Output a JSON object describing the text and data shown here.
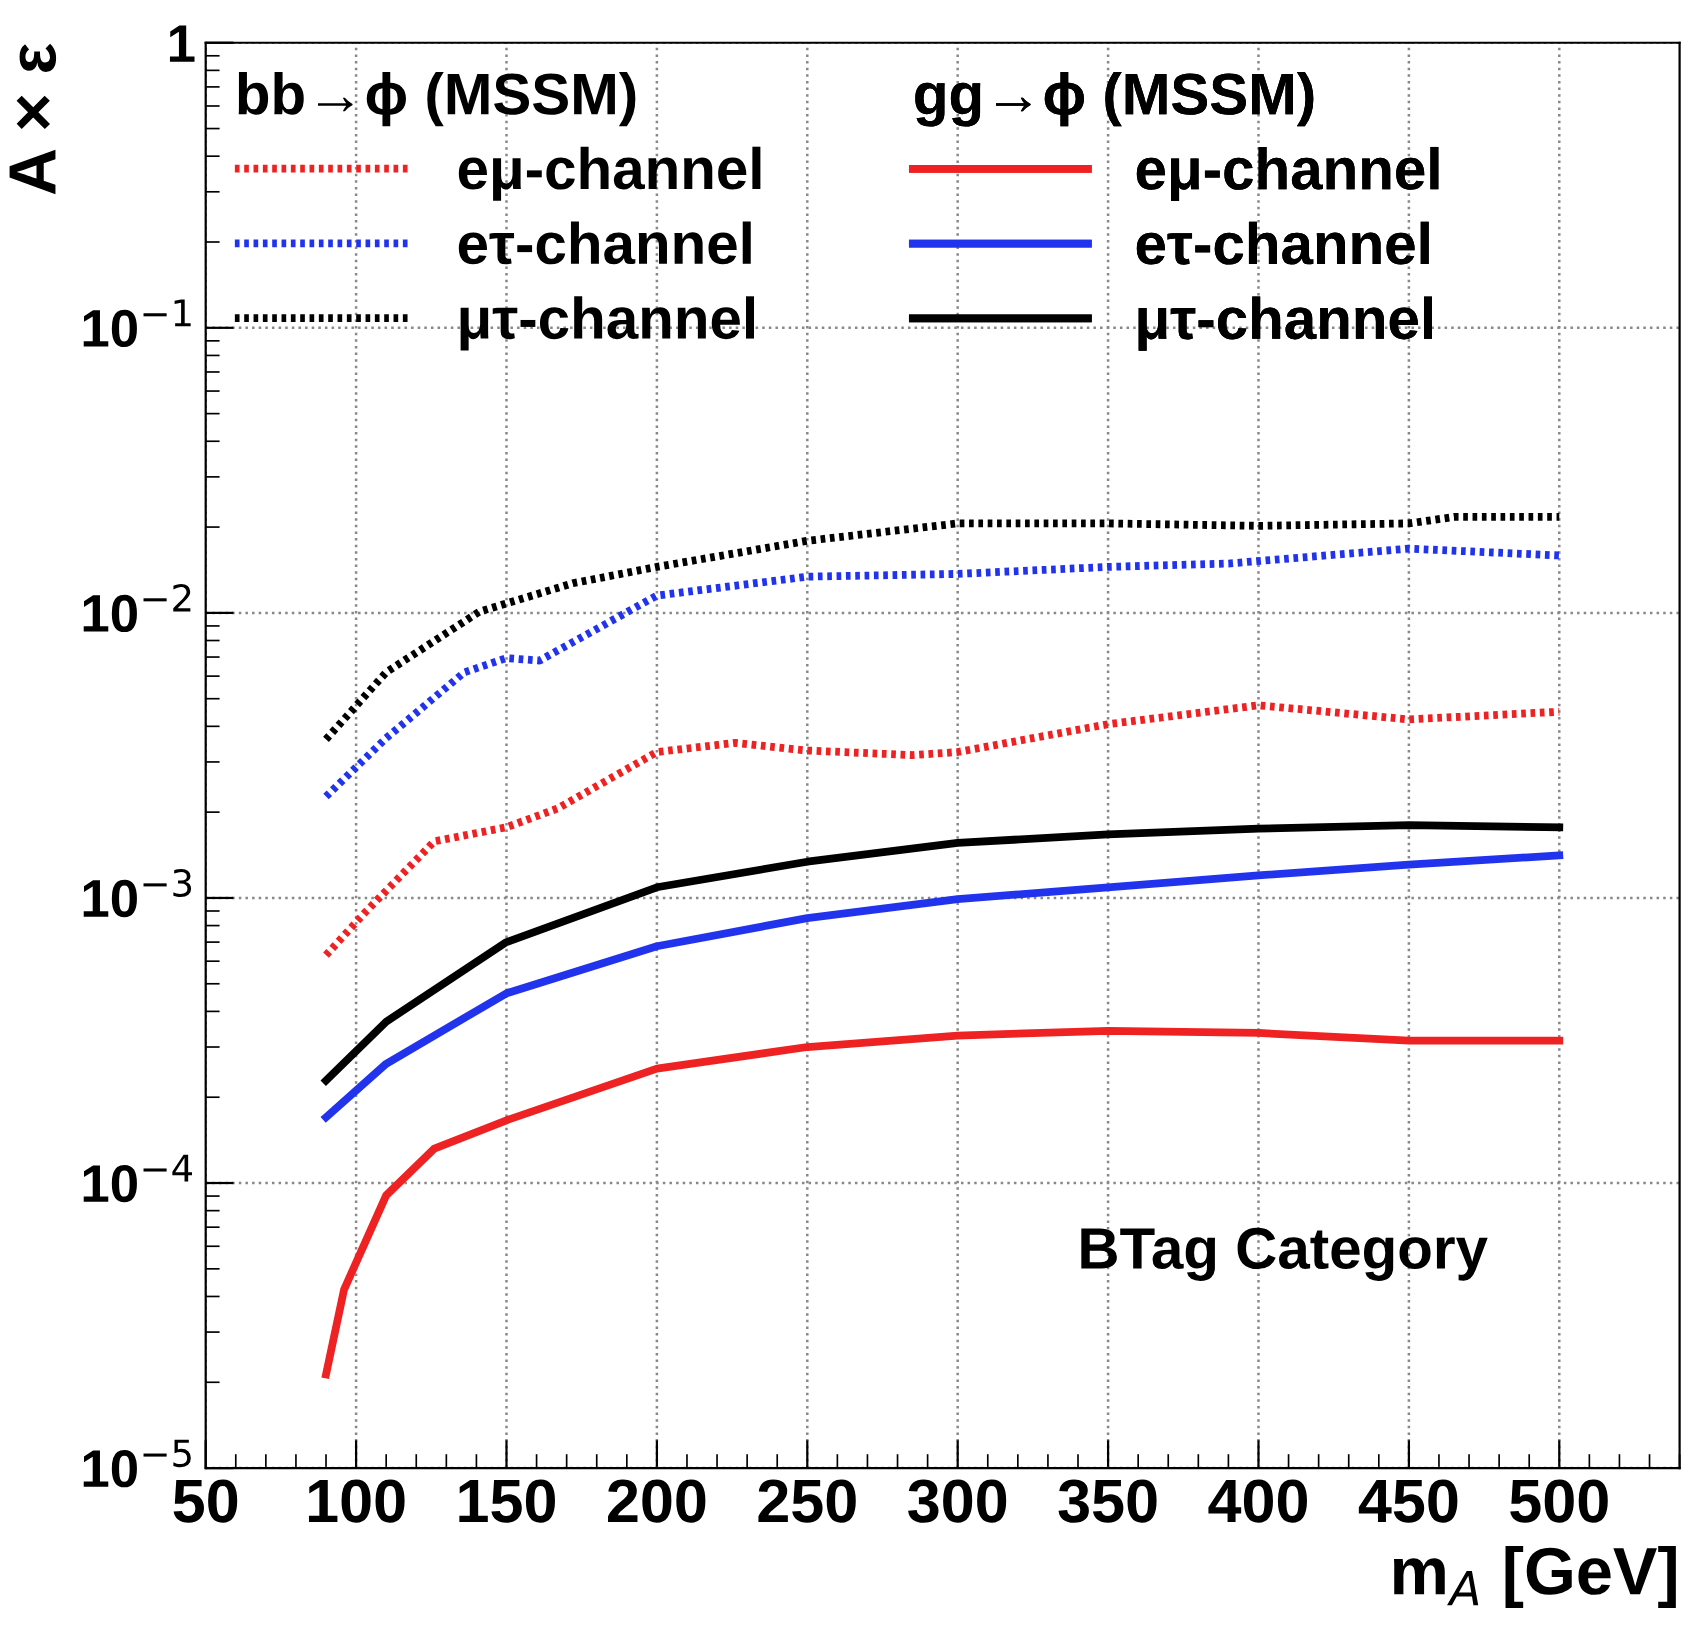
{
  "chart_data": {
    "type": "line",
    "xlabel": "m$_{A}$ [GeV]",
    "ylabel": "A × ε",
    "log": "y",
    "grid": true,
    "legend": "top left",
    "xlim": [
      50,
      540
    ],
    "xticks": [
      50,
      100,
      150,
      200,
      250,
      300,
      350,
      400,
      450,
      500
    ],
    "ylim": [
      1e-05,
      1
    ],
    "yticks": [
      {
        "value": 1e-05,
        "label": "10$^{−5}$"
      },
      {
        "value": 0.0001,
        "label": "10$^{−4}$"
      },
      {
        "value": 0.001,
        "label": "10$^{−3}$"
      },
      {
        "value": 0.01,
        "label": "10$^{−2}$"
      },
      {
        "value": 0.1,
        "label": "10$^{−1}$"
      },
      {
        "value": 1,
        "label": "1"
      }
    ],
    "annotations": [
      "bb→ϕ (MSSM)",
      "gg→ϕ (MSSM)",
      "BTag Category"
    ],
    "series": [
      {
        "name": "eμ-channel",
        "color": "#ee2222",
        "line_style": "dotted",
        "x": [
          90,
          103,
          126,
          150,
          167,
          200,
          226,
          250,
          285,
          300,
          350,
          400,
          450,
          500
        ],
        "values": [
          0.00063,
          0.00089,
          0.00158,
          0.00177,
          0.00206,
          0.00325,
          0.0035,
          0.00329,
          0.00317,
          0.00325,
          0.00407,
          0.00474,
          0.00423,
          0.0045
        ]
      },
      {
        "name": "eτ-channel",
        "color": "#2233ee",
        "line_style": "dotted",
        "x": [
          90,
          110,
          136,
          150,
          161,
          200,
          250,
          300,
          350,
          390,
          450,
          500
        ],
        "values": [
          0.00227,
          0.00364,
          0.00619,
          0.00694,
          0.0068,
          0.0115,
          0.0134,
          0.0137,
          0.0145,
          0.0149,
          0.0168,
          0.0159
        ]
      },
      {
        "name": "μτ-channel",
        "color": "#000000",
        "line_style": "dotted",
        "x": [
          90,
          110,
          141,
          172,
          200,
          250,
          300,
          350,
          400,
          450,
          465,
          500
        ],
        "values": [
          0.0036,
          0.00619,
          0.0101,
          0.0127,
          0.0145,
          0.0179,
          0.0206,
          0.0206,
          0.0202,
          0.0206,
          0.0217,
          0.0217
        ]
      },
      {
        "name": "eμ-channel",
        "color": "#ee2222",
        "line_style": "solid",
        "x": [
          90,
          96,
          110,
          126,
          150,
          200,
          250,
          300,
          350,
          400,
          450,
          500
        ],
        "values": [
          2.13e-05,
          4.23e-05,
          9.05e-05,
          0.000132,
          0.000166,
          0.000252,
          0.0003,
          0.000329,
          0.000342,
          0.000336,
          0.000316,
          0.000316
        ]
      },
      {
        "name": "eτ-channel",
        "color": "#2233ee",
        "line_style": "solid",
        "x": [
          90,
          110,
          150,
          200,
          250,
          300,
          350,
          400,
          450,
          500
        ],
        "values": [
          0.00017,
          0.000262,
          0.000463,
          0.000677,
          0.00085,
          0.00099,
          0.00109,
          0.0012,
          0.00131,
          0.00141
        ]
      },
      {
        "name": "μτ-channel",
        "color": "#000000",
        "line_style": "solid",
        "x": [
          90,
          110,
          150,
          200,
          250,
          300,
          350,
          400,
          450,
          500
        ],
        "values": [
          0.000229,
          0.000368,
          0.0007,
          0.00109,
          0.00134,
          0.00156,
          0.00167,
          0.00175,
          0.0018,
          0.00177
        ]
      }
    ]
  }
}
